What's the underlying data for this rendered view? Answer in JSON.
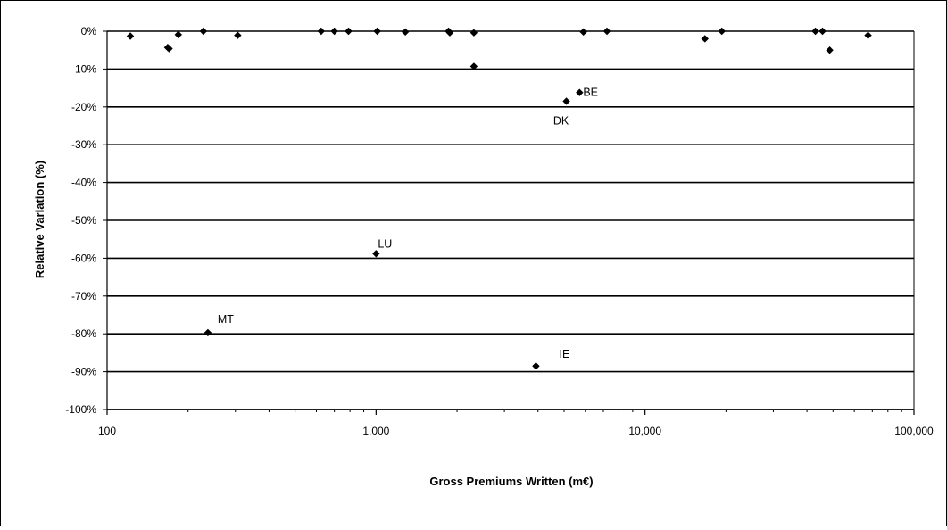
{
  "chart_data": {
    "type": "scatter",
    "title": "",
    "xlabel": "Gross Premiums Written (m€)",
    "ylabel": "Relative Variation (%)",
    "xscale": "log",
    "xlim": [
      100,
      100000
    ],
    "ylim": [
      -100,
      0
    ],
    "grid": "horizontal",
    "xticks": [
      {
        "value": 100,
        "label": "100"
      },
      {
        "value": 1000,
        "label": "1,000"
      },
      {
        "value": 10000,
        "label": "10,000"
      },
      {
        "value": 100000,
        "label": "100,000"
      }
    ],
    "yticks": [
      {
        "value": 0,
        "label": "0%"
      },
      {
        "value": -10,
        "label": "-10%"
      },
      {
        "value": -20,
        "label": "-20%"
      },
      {
        "value": -30,
        "label": "-30%"
      },
      {
        "value": -40,
        "label": "-40%"
      },
      {
        "value": -50,
        "label": "-50%"
      },
      {
        "value": -60,
        "label": "-60%"
      },
      {
        "value": -70,
        "label": "-70%"
      },
      {
        "value": -80,
        "label": "-80%"
      },
      {
        "value": -90,
        "label": "-90%"
      },
      {
        "value": -100,
        "label": "-100%"
      }
    ],
    "points": [
      {
        "x": 122,
        "y": -1.3
      },
      {
        "x": 168,
        "y": -4.3
      },
      {
        "x": 170,
        "y": -4.6
      },
      {
        "x": 184,
        "y": -0.9
      },
      {
        "x": 228,
        "y": 0
      },
      {
        "x": 306,
        "y": -1.1
      },
      {
        "x": 625,
        "y": 0
      },
      {
        "x": 700,
        "y": 0
      },
      {
        "x": 790,
        "y": 0
      },
      {
        "x": 1010,
        "y": 0
      },
      {
        "x": 1285,
        "y": -0.2
      },
      {
        "x": 1860,
        "y": 0
      },
      {
        "x": 1880,
        "y": -0.4
      },
      {
        "x": 2310,
        "y": -0.4
      },
      {
        "x": 2310,
        "y": -9.3
      },
      {
        "x": 5900,
        "y": -0.2
      },
      {
        "x": 7220,
        "y": 0
      },
      {
        "x": 16700,
        "y": -2.0
      },
      {
        "x": 19300,
        "y": 0
      },
      {
        "x": 43000,
        "y": 0
      },
      {
        "x": 45700,
        "y": 0
      },
      {
        "x": 48600,
        "y": -5.0
      },
      {
        "x": 67500,
        "y": -1.1
      },
      {
        "x": 5710,
        "y": -16.2,
        "label": "BE"
      },
      {
        "x": 5100,
        "y": -18.5,
        "label": "DK"
      },
      {
        "x": 1000,
        "y": -58.8,
        "label": "LU"
      },
      {
        "x": 237,
        "y": -79.7,
        "label": "MT"
      },
      {
        "x": 3930,
        "y": -88.5,
        "label": "IE"
      }
    ]
  }
}
